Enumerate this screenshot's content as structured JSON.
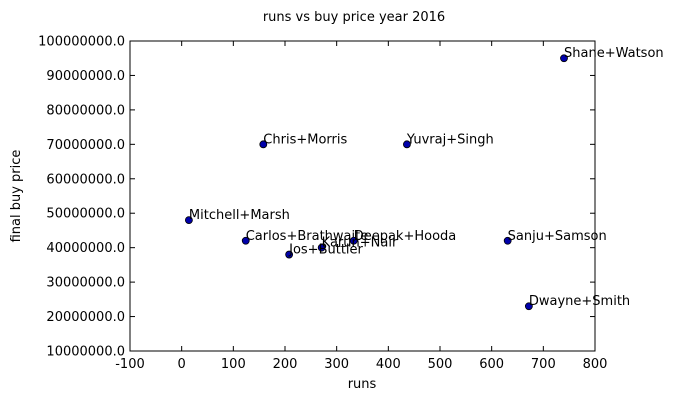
{
  "chart_data": {
    "type": "scatter",
    "title": "runs vs buy price year 2016",
    "xlabel": "runs",
    "ylabel": "final buy price",
    "xlim": [
      -100,
      800
    ],
    "ylim": [
      10000000,
      100000000
    ],
    "x_ticks": [
      -100,
      0,
      100,
      200,
      300,
      400,
      500,
      600,
      700,
      800
    ],
    "x_tick_labels": [
      "-100",
      "0",
      "100",
      "200",
      "300",
      "400",
      "500",
      "600",
      "700",
      "800"
    ],
    "y_ticks": [
      10000000,
      20000000,
      30000000,
      40000000,
      50000000,
      60000000,
      70000000,
      80000000,
      90000000,
      100000000
    ],
    "y_tick_labels": [
      "10000000.0",
      "20000000.0",
      "30000000.0",
      "40000000.0",
      "50000000.0",
      "60000000.0",
      "70000000.0",
      "80000000.0",
      "90000000.0",
      "100000000.0"
    ],
    "grid": false,
    "marker_color": "#0000aa",
    "marker_edge": "#000000",
    "points": [
      {
        "label": "Shane+Watson",
        "x": 740,
        "y": 95000000
      },
      {
        "label": "Chris+Morris",
        "x": 158,
        "y": 70000000
      },
      {
        "label": "Yuvraj+Singh",
        "x": 436,
        "y": 70000000
      },
      {
        "label": "Mitchell+Marsh",
        "x": 14,
        "y": 48000000
      },
      {
        "label": "Carlos+Brathwaite",
        "x": 124,
        "y": 42000000
      },
      {
        "label": "Deepak+Hooda",
        "x": 333,
        "y": 42000000
      },
      {
        "label": "Sanju+Samson",
        "x": 631,
        "y": 42000000
      },
      {
        "label": "Karun+Nair",
        "x": 271,
        "y": 40000000
      },
      {
        "label": "Jos+Buttler",
        "x": 208,
        "y": 38000000
      },
      {
        "label": "Dwayne+Smith",
        "x": 672,
        "y": 23000000
      }
    ]
  }
}
